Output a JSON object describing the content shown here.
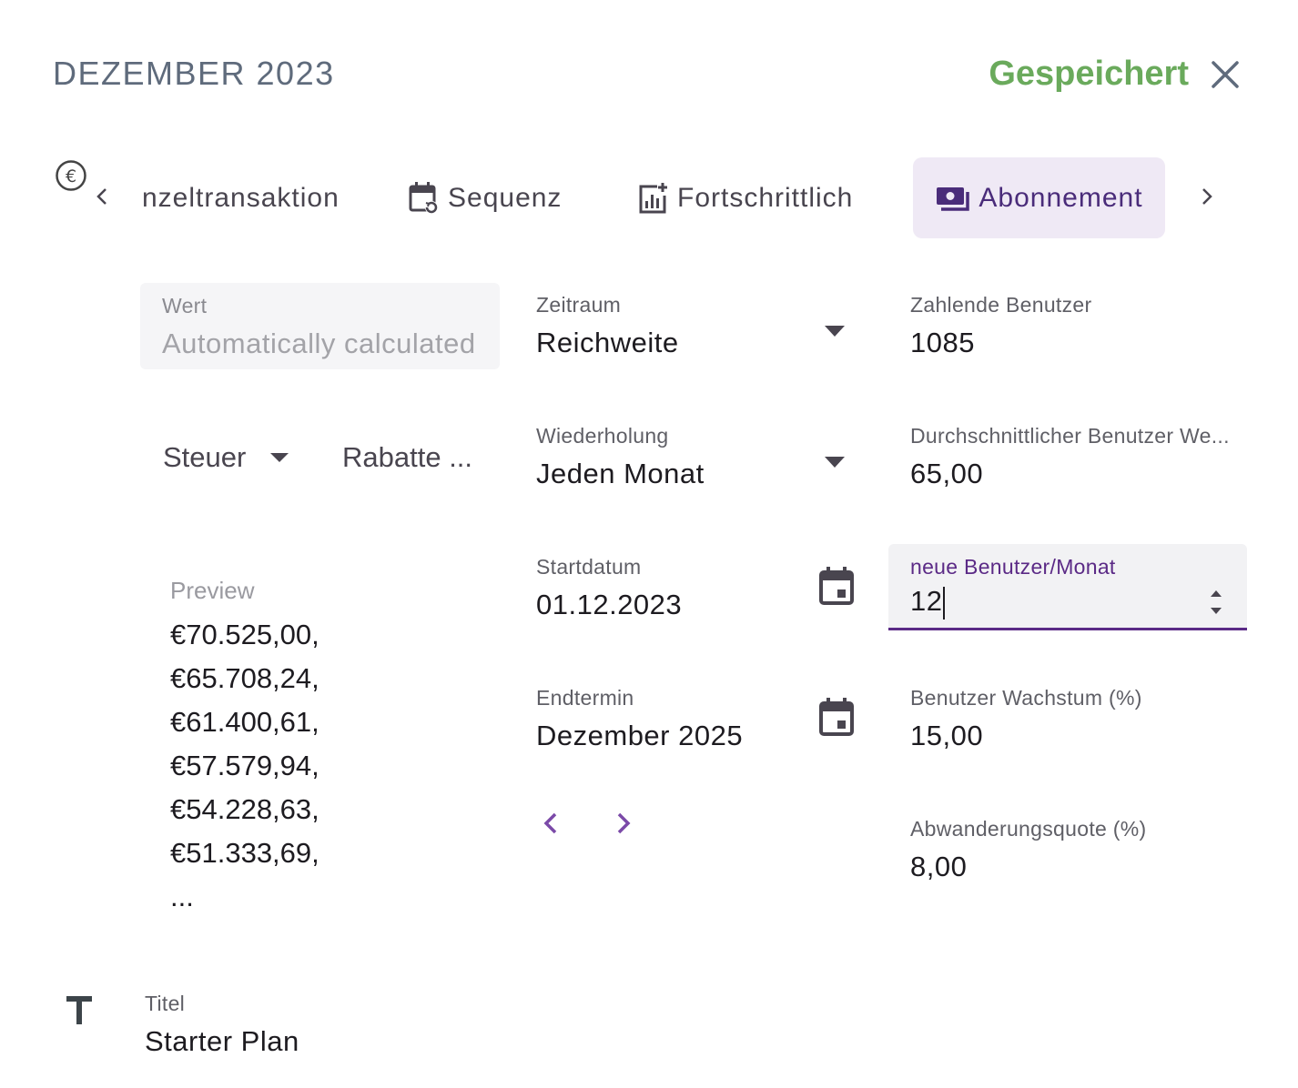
{
  "header": {
    "title": "DEZEMBER 2023",
    "status": "Gespeichert",
    "status_color": "#6aaa5c"
  },
  "icons": {
    "close": "close-icon",
    "currency": "euro-icon",
    "title_field": "text-t-icon",
    "calendar": "calendar-icon"
  },
  "tabs": [
    {
      "label": "nzeltransaktion",
      "icon": "none"
    },
    {
      "label": "Sequenz",
      "icon": "calendar-repeat-icon"
    },
    {
      "label": "Fortschrittlich",
      "icon": "chart-add-icon"
    },
    {
      "label": "Abonnement",
      "icon": "payments-icon",
      "active": true
    }
  ],
  "value_field": {
    "label": "Wert",
    "placeholder": "Automatically calculated"
  },
  "tax": {
    "label": "Steuer"
  },
  "discounts": {
    "label": "Rabatte ..."
  },
  "preview": {
    "label": "Preview",
    "items": [
      "€70.525,00,",
      "€65.708,24,",
      "€61.400,61,",
      "€57.579,94,",
      "€54.228,63,",
      "€51.333,69,",
      "..."
    ]
  },
  "period": {
    "label": "Zeitraum",
    "value": "Reichweite"
  },
  "repeat": {
    "label": "Wiederholung",
    "value": "Jeden Monat"
  },
  "start_date": {
    "label": "Startdatum",
    "value": "01.12.2023"
  },
  "end_date": {
    "label": "Endtermin",
    "value": "Dezember 2025"
  },
  "paying_users": {
    "label": "Zahlende Benutzer",
    "value": "1085"
  },
  "avg_user_value": {
    "label": "Durchschnittlicher Benutzer We...",
    "value": "65,00"
  },
  "new_users": {
    "label": "neue Benutzer/Monat",
    "value": "12"
  },
  "user_growth": {
    "label": "Benutzer Wachstum (%)",
    "value": "15,00"
  },
  "churn": {
    "label": "Abwanderungsquote (%)",
    "value": "8,00"
  },
  "title_field": {
    "label": "Titel",
    "value": "Starter Plan"
  },
  "colors": {
    "accent": "#5b2a86",
    "active_tab_bg": "#efe9f5",
    "saved_green": "#6aaa5c"
  }
}
